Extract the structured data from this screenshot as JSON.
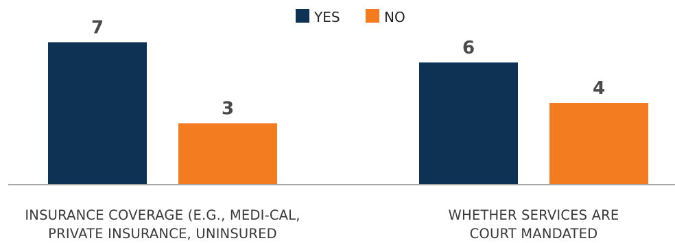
{
  "chart_data": {
    "type": "bar",
    "title": "",
    "xlabel": "",
    "ylabel": "",
    "ylim": [
      0,
      7
    ],
    "grid": false,
    "legend_position": "top-center",
    "categories": [
      {
        "id": "insurance",
        "label_lines": [
          "INSURANCE COVERAGE (E.G., MEDI-CAL,",
          "PRIVATE INSURANCE, UNINSURED"
        ]
      },
      {
        "id": "court",
        "label_lines": [
          "WHETHER SERVICES ARE",
          "COURT MANDATED"
        ]
      }
    ],
    "series": [
      {
        "name": "YES",
        "color": "#0e3254",
        "values": [
          7,
          6
        ]
      },
      {
        "name": "NO",
        "color": "#f47c20",
        "values": [
          3,
          4
        ]
      }
    ]
  },
  "colors": {
    "axis": "#a6a6a6",
    "value_label": "#4a4a4a",
    "category_label": "#3a3a3a"
  }
}
